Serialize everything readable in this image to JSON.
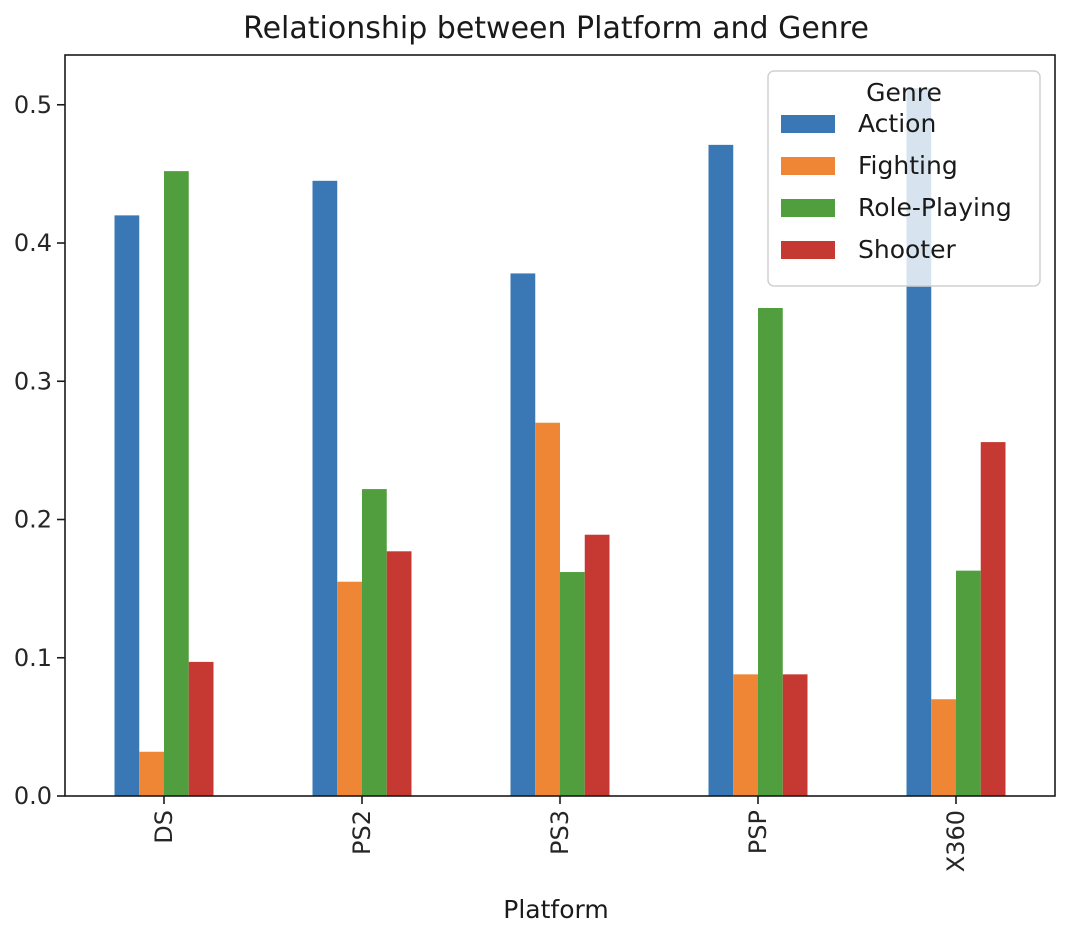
{
  "chart_data": {
    "type": "bar",
    "title": "Relationship between Platform and Genre",
    "xlabel": "Platform",
    "ylabel": "",
    "categories": [
      "DS",
      "PS2",
      "PS3",
      "PSP",
      "X360"
    ],
    "series": [
      {
        "name": "Action",
        "color": "#3a78b5",
        "values": [
          0.42,
          0.445,
          0.378,
          0.471,
          0.512
        ]
      },
      {
        "name": "Fighting",
        "color": "#ef8636",
        "values": [
          0.032,
          0.155,
          0.27,
          0.088,
          0.07
        ]
      },
      {
        "name": "Role-Playing",
        "color": "#519e3e",
        "values": [
          0.452,
          0.222,
          0.162,
          0.353,
          0.163
        ]
      },
      {
        "name": "Shooter",
        "color": "#c53932",
        "values": [
          0.097,
          0.177,
          0.189,
          0.088,
          0.256
        ]
      }
    ],
    "ylim": [
      0,
      0.536
    ],
    "yticks": [
      0.0,
      0.1,
      0.2,
      0.3,
      0.4,
      0.5
    ],
    "ytick_labels": [
      "0.0",
      "0.1",
      "0.2",
      "0.3",
      "0.4",
      "0.5"
    ],
    "x_tick_rotation": "vertical",
    "grid": false,
    "legend": {
      "title": "Genre",
      "placement": "upper right"
    }
  }
}
